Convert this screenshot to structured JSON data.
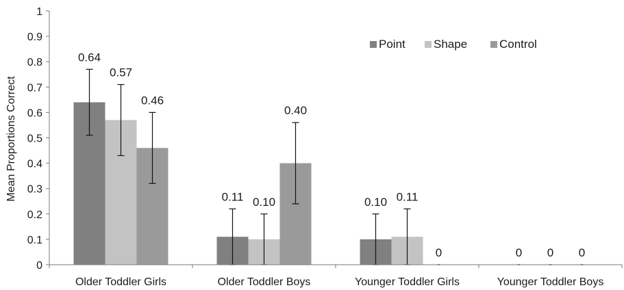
{
  "chart_data": {
    "type": "bar",
    "title": "",
    "xlabel": "",
    "ylabel": "Mean Proportions Correct",
    "ylim": [
      0,
      1
    ],
    "y_ticks": [
      "0",
      "0.1",
      "0.2",
      "0.3",
      "0.4",
      "0.5",
      "0.6",
      "0.7",
      "0.8",
      "0.9",
      "1"
    ],
    "grid": false,
    "legend_position": "top-right",
    "categories": [
      "Older Toddler Girls",
      "Older Toddler Boys",
      "Younger Toddler Girls",
      "Younger Toddler Boys"
    ],
    "series": [
      {
        "name": "Point",
        "color": "#808080",
        "values": [
          0.64,
          0.11,
          0.1,
          0
        ],
        "error_low": [
          0.51,
          0.0,
          0.0,
          null
        ],
        "error_high": [
          0.77,
          0.22,
          0.2,
          null
        ],
        "data_labels": [
          "0.64",
          "0.11",
          "0.10",
          "0"
        ]
      },
      {
        "name": "Shape",
        "color": "#c3c3c3",
        "values": [
          0.57,
          0.1,
          0.11,
          0
        ],
        "error_low": [
          0.43,
          0.0,
          0.0,
          null
        ],
        "error_high": [
          0.71,
          0.2,
          0.22,
          null
        ],
        "data_labels": [
          "0.57",
          "0.10",
          "0.11",
          "0"
        ]
      },
      {
        "name": "Control",
        "color": "#9a9a9a",
        "values": [
          0.46,
          0.4,
          0,
          0
        ],
        "error_low": [
          0.32,
          0.24,
          null,
          null
        ],
        "error_high": [
          0.6,
          0.56,
          null,
          null
        ],
        "data_labels": [
          "0.46",
          "0.40",
          "0",
          "0"
        ]
      }
    ]
  }
}
